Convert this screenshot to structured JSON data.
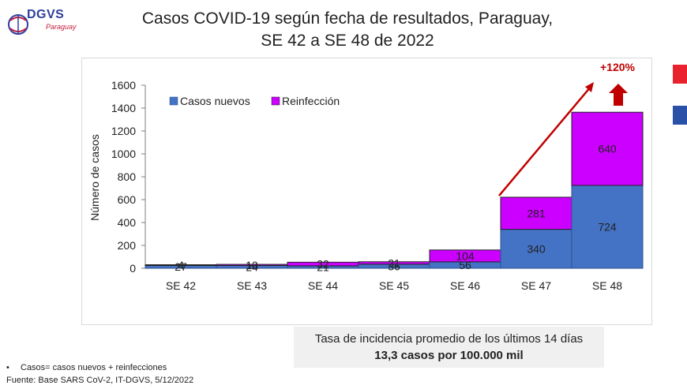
{
  "logo": {
    "text": "DGVS",
    "subtext": "Paraguay"
  },
  "title_line1": "Casos COVID-19 según fecha de resultados, Paraguay,",
  "title_line2": "SE 42 a SE 48 de 2022",
  "incidence": {
    "line1": "Tasa de incidencia promedio de los últimos 14 días",
    "line2": "13,3 casos por 100.000 mil"
  },
  "footnote": {
    "bullet": "•",
    "line1": "Casos= casos nuevos + reinfecciones",
    "line2": "Fuente: Base SARS CoV-2, IT-DGVS, 5/12/2022"
  },
  "colors": {
    "new": "#4472c4",
    "reinf": "#cc00ff",
    "arrow": "#c00000",
    "flag_red": "#e8232e",
    "flag_blue": "#2a51a8"
  },
  "chart_data": {
    "type": "bar",
    "stacked": true,
    "categories": [
      "SE 42",
      "SE 43",
      "SE 44",
      "SE 45",
      "SE 46",
      "SE 47",
      "SE 48"
    ],
    "series": [
      {
        "name": "Casos nuevos",
        "values": [
          27,
          24,
          21,
          36,
          56,
          340,
          724
        ]
      },
      {
        "name": "Reinfección",
        "values": [
          4,
          10,
          32,
          21,
          104,
          281,
          640
        ]
      }
    ],
    "ylabel": "Número de casos",
    "ylim": [
      0,
      1600
    ],
    "yticks": [
      0,
      200,
      400,
      600,
      800,
      1000,
      1200,
      1400,
      1600
    ],
    "grid": false,
    "legend": "top-left",
    "annotation": "+120%"
  }
}
